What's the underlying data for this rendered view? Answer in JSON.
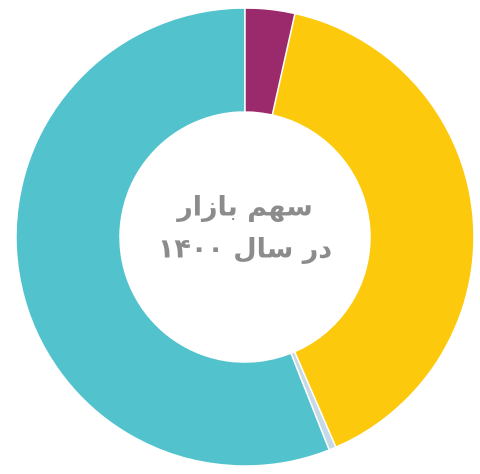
{
  "chart_data": {
    "type": "donut",
    "title": "سهم بازار",
    "subtitle": "در سال ۱۴۰۰",
    "values": [
      3.5,
      40,
      0.5,
      56
    ],
    "colors": [
      "#9b2a6c",
      "#fdc90c",
      "#c5d9e6",
      "#52c3cc"
    ]
  }
}
